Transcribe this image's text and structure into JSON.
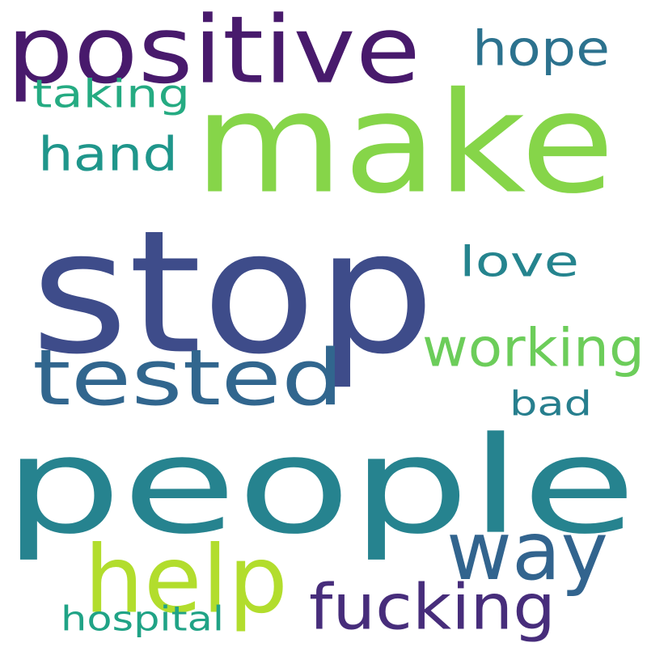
{
  "words": [
    {
      "key": "people",
      "text": "people",
      "color": "#26838f"
    },
    {
      "key": "stop",
      "text": "stop",
      "color": "#3e4c8a"
    },
    {
      "key": "make",
      "text": "make",
      "color": "#86d549"
    },
    {
      "key": "positive",
      "text": "positive",
      "color": "#481a6c"
    },
    {
      "key": "tested",
      "text": "tested",
      "color": "#31668e"
    },
    {
      "key": "help",
      "text": "help",
      "color": "#b2dd2d"
    },
    {
      "key": "way",
      "text": "way",
      "color": "#32648e"
    },
    {
      "key": "fucking",
      "text": "fucking",
      "color": "#472d7b"
    },
    {
      "key": "working",
      "text": "working",
      "color": "#6ccd5a"
    },
    {
      "key": "hope",
      "text": "hope",
      "color": "#2c728e"
    },
    {
      "key": "hand",
      "text": "hand",
      "color": "#1f968b"
    },
    {
      "key": "love",
      "text": "love",
      "color": "#25848e"
    },
    {
      "key": "taking",
      "text": "taking",
      "color": "#25ab82"
    },
    {
      "key": "bad",
      "text": "bad",
      "color": "#277f8e"
    },
    {
      "key": "hospital",
      "text": "hospital",
      "color": "#20a386"
    }
  ]
}
